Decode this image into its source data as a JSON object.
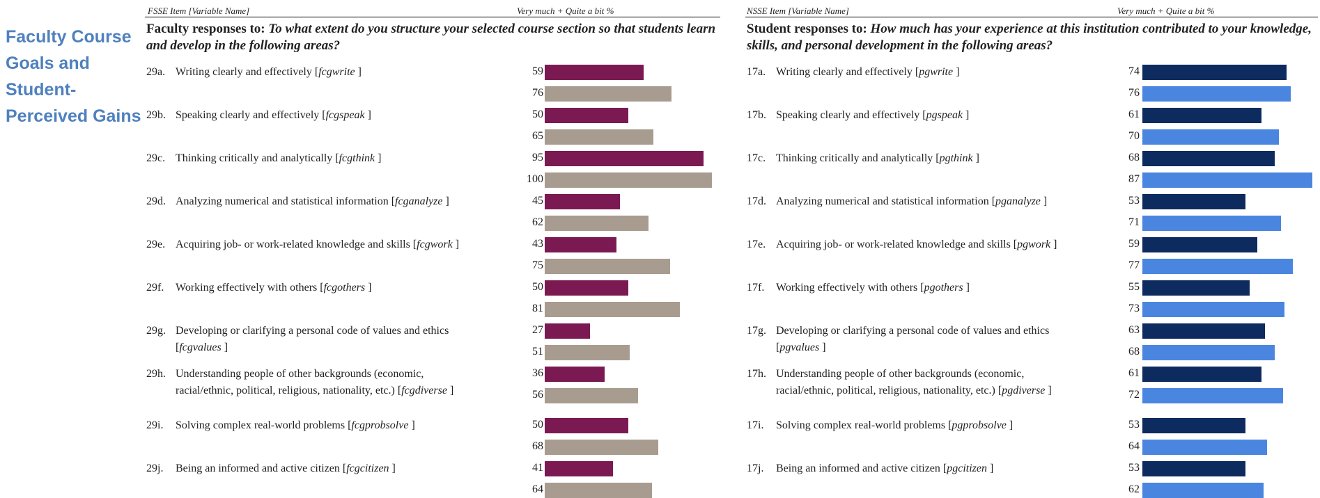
{
  "side_title": "Faculty Course Goals and Student-Perceived Gains",
  "left_panel": {
    "col_header_item": "FSSE Item [Variable Name]",
    "col_header_value": "Very much + Quite a bit %",
    "question_lead": "Faculty responses to: ",
    "question_text": "To what extent do you structure your selected course section so that students learn and develop in the following areas?"
  },
  "right_panel": {
    "col_header_item": "NSSE Item [Variable Name]",
    "col_header_value": "Very much + Quite a bit %",
    "question_lead": "Student responses to: ",
    "question_text": "How much has your experience at this institution contributed to your knowledge, skills, and personal development in the following areas?"
  },
  "colors": {
    "fsse_primary": "#7b1a52",
    "fsse_secondary": "#a89c90",
    "nsse_primary": "#0d2b5e",
    "nsse_secondary": "#4a86e0",
    "title_blue": "#4f81bd"
  },
  "chart_data": [
    {
      "type": "bar",
      "orientation": "horizontal",
      "value_label": "Very much + Quite a bit %",
      "categories": [
        "29a",
        "29b",
        "29c",
        "29d",
        "29e",
        "29f",
        "29g",
        "29h",
        "29i",
        "29j"
      ],
      "series": [
        {
          "values": [
            59,
            50,
            95,
            45,
            43,
            50,
            27,
            36,
            50,
            41
          ]
        },
        {
          "values": [
            76,
            65,
            100,
            62,
            75,
            81,
            51,
            56,
            68,
            64
          ]
        }
      ],
      "xlim": [
        0,
        100
      ]
    },
    {
      "type": "bar",
      "orientation": "horizontal",
      "value_label": "Very much + Quite a bit %",
      "categories": [
        "17a",
        "17b",
        "17c",
        "17d",
        "17e",
        "17f",
        "17g",
        "17h",
        "17i",
        "17j"
      ],
      "series": [
        {
          "values": [
            74,
            61,
            68,
            53,
            59,
            55,
            63,
            61,
            53,
            53
          ]
        },
        {
          "values": [
            76,
            70,
            87,
            71,
            77,
            73,
            68,
            72,
            64,
            62
          ]
        }
      ],
      "xlim": [
        0,
        100
      ]
    }
  ],
  "items_left": [
    {
      "code": "29a.",
      "text": "Writing clearly and effectively [",
      "var": "fcgwrite",
      "close": " ]"
    },
    {
      "code": "29b.",
      "text": "Speaking clearly and effectively [",
      "var": "fcgspeak",
      "close": " ]"
    },
    {
      "code": "29c.",
      "text": "Thinking critically and analytically [",
      "var": "fcgthink",
      "close": " ]"
    },
    {
      "code": "29d.",
      "text": "Analyzing numerical and statistical information [",
      "var": "fcganalyze",
      "close": " ]"
    },
    {
      "code": "29e.",
      "text": "Acquiring job- or work-related knowledge and skills [",
      "var": "fcgwork",
      "close": " ]"
    },
    {
      "code": "29f.",
      "text": "Working effectively with others [",
      "var": "fcgothers",
      "close": " ]"
    },
    {
      "code": "29g.",
      "text": "Developing or clarifying a personal code of values and ethics [",
      "var": "fcgvalues",
      "close": " ]"
    },
    {
      "code": "29h.",
      "text": "Understanding people of other backgrounds (economic, racial/ethnic, political, religious, nationality, etc.) [",
      "var": "fcgdiverse",
      "close": " ]"
    },
    {
      "code": "29i.",
      "text": "Solving complex real-world problems [",
      "var": "fcgprobsolve",
      "close": " ]"
    },
    {
      "code": "29j.",
      "text": "Being an informed and active citizen [",
      "var": "fcgcitizen",
      "close": " ]"
    }
  ],
  "items_right": [
    {
      "code": "17a.",
      "text": "Writing clearly and effectively [",
      "var": "pgwrite",
      "close": " ]"
    },
    {
      "code": "17b.",
      "text": "Speaking clearly and effectively [",
      "var": "pgspeak",
      "close": " ]"
    },
    {
      "code": "17c.",
      "text": "Thinking critically and analytically [",
      "var": "pgthink",
      "close": " ]"
    },
    {
      "code": "17d.",
      "text": "Analyzing numerical and statistical information [",
      "var": "pganalyze",
      "close": " ]"
    },
    {
      "code": "17e.",
      "text": "Acquiring job- or work-related knowledge and skills [",
      "var": "pgwork",
      "close": " ]"
    },
    {
      "code": "17f.",
      "text": "Working effectively with others [",
      "var": "pgothers",
      "close": " ]"
    },
    {
      "code": "17g.",
      "text": "Developing or clarifying a personal code of values and ethics [",
      "var": "pgvalues",
      "close": " ]"
    },
    {
      "code": "17h.",
      "text": "Understanding people of other backgrounds (economic, racial/ethnic, political, religious, nationality, etc.) [",
      "var": "pgdiverse",
      "close": " ]"
    },
    {
      "code": "17i.",
      "text": "Solving complex real-world problems [",
      "var": "pgprobsolve",
      "close": " ]"
    },
    {
      "code": "17j.",
      "text": "Being an informed and active citizen [",
      "var": "pgcitizen",
      "close": " ]"
    }
  ]
}
